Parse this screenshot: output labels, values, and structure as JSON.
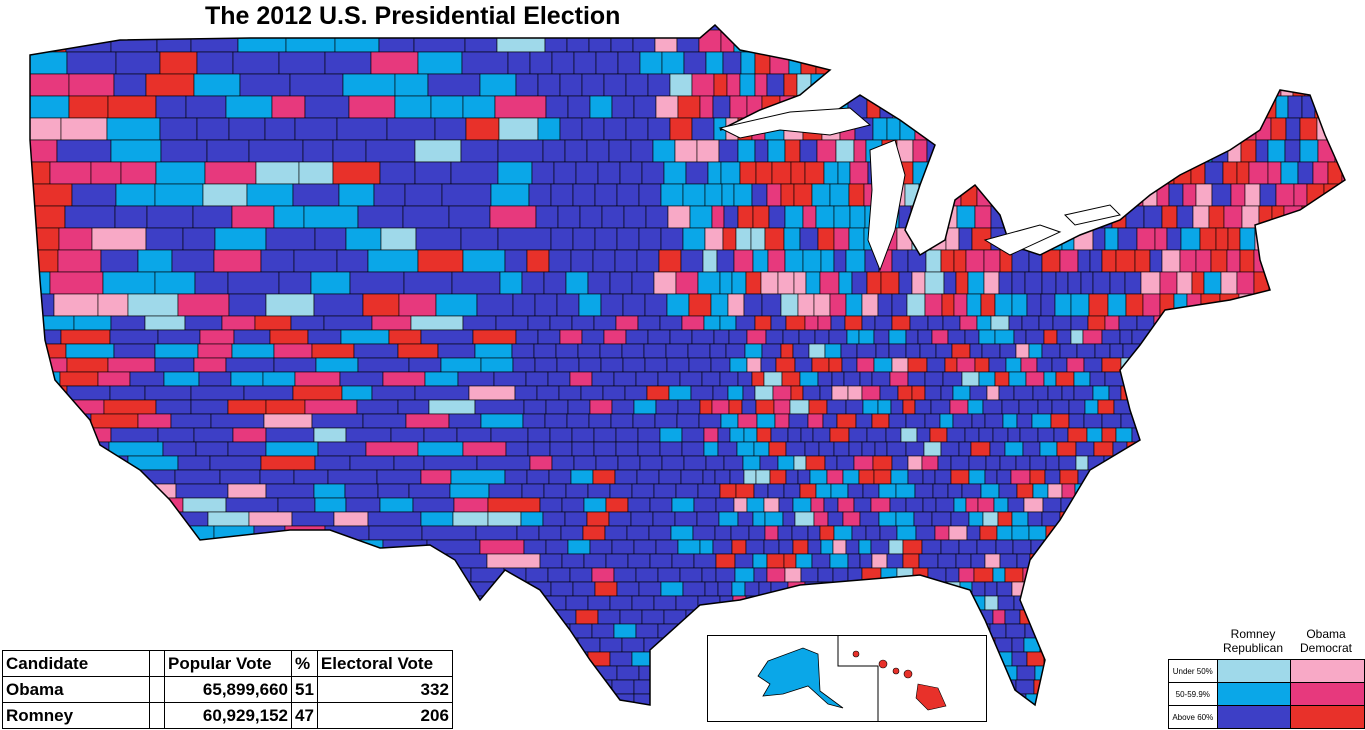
{
  "title": "The 2012 U.S. Presidential Election",
  "colors": {
    "rep_under50": "#9fd9ea",
    "rep_50_60": "#0aa7e8",
    "rep_above60": "#3d3fc6",
    "dem_under50": "#f8a9c6",
    "dem_50_60": "#e7397d",
    "dem_above60": "#e8312a",
    "border": "#000000",
    "background": "#ffffff"
  },
  "results": {
    "headers": [
      "Candidate",
      "",
      "Popular Vote",
      "%",
      "Electoral Vote"
    ],
    "rows": [
      {
        "candidate": "Obama",
        "popular_vote": "65,899,660",
        "percent": "51",
        "electoral_vote": "332"
      },
      {
        "candidate": "Romney",
        "popular_vote": "60,929,152",
        "percent": "47",
        "electoral_vote": "206"
      }
    ]
  },
  "legend": {
    "romney_label_1": "Romney",
    "romney_label_2": "Republican",
    "obama_label_1": "Obama",
    "obama_label_2": "Democrat",
    "rows": [
      "Under 50%",
      "50-59.9%",
      "Above 60%"
    ]
  },
  "inset": {
    "alaska_color": "rep_50_60",
    "hawaii_color": "dem_above60"
  }
}
